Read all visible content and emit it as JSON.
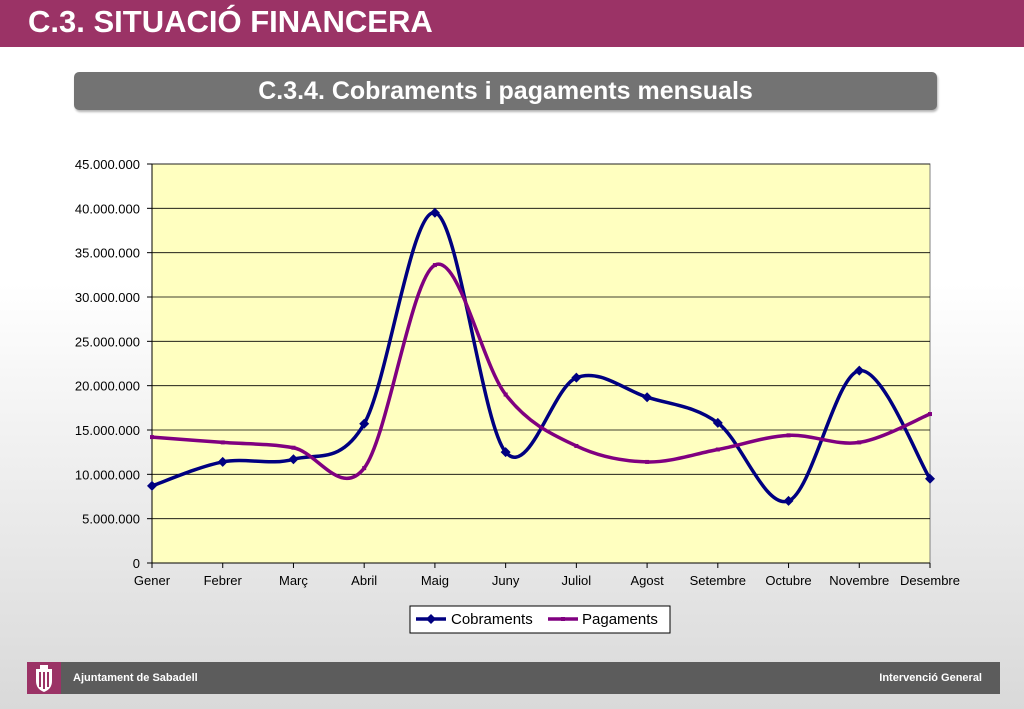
{
  "header": {
    "title": "C.3. SITUACIÓ FINANCERA"
  },
  "subtitle": "C.3.4. Cobraments i pagaments mensuals",
  "footer": {
    "left": "Ajuntament de Sabadell",
    "right": "Intervenció General"
  },
  "colors": {
    "banner": "#9b3366",
    "subtitle_bar": "#737373",
    "plot_bg": "#ffffc0",
    "cobraments": "#000080",
    "pagaments": "#800080"
  },
  "chart_data": {
    "type": "line",
    "title": "",
    "xlabel": "",
    "ylabel": "",
    "categories": [
      "Gener",
      "Febrer",
      "Març",
      "Abril",
      "Maig",
      "Juny",
      "Juliol",
      "Agost",
      "Setembre",
      "Octubre",
      "Novembre",
      "Desembre"
    ],
    "y_tick_labels": [
      "0",
      "5.000.000",
      "10.000.000",
      "15.000.000",
      "20.000.000",
      "25.000.000",
      "30.000.000",
      "35.000.000",
      "40.000.000",
      "45.000.000"
    ],
    "ylim": [
      0,
      45000000
    ],
    "grid": true,
    "legend": "bottom",
    "series": [
      {
        "name": "Cobraments",
        "values": [
          8700000,
          11400000,
          11700000,
          15700000,
          39500000,
          12500000,
          20900000,
          18700000,
          15800000,
          7000000,
          21700000,
          9500000
        ]
      },
      {
        "name": "Pagaments",
        "values": [
          14200000,
          13600000,
          13000000,
          10700000,
          33600000,
          19000000,
          13200000,
          11400000,
          12800000,
          14400000,
          13600000,
          16800000
        ]
      }
    ]
  }
}
